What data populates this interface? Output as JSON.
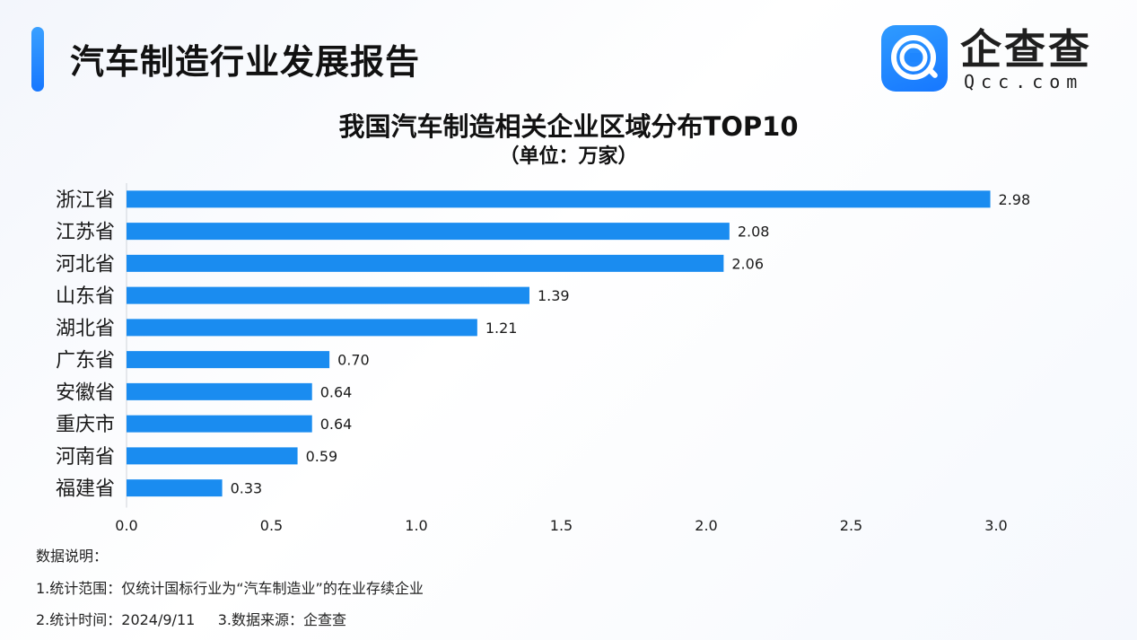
{
  "header": {
    "report_title": "汽车制造行业发展报告",
    "logo_text": "企查查",
    "logo_subtext": "Qcc.com",
    "accent_color": "#1677ff"
  },
  "chart_data": {
    "type": "bar",
    "orientation": "horizontal",
    "title": "我国汽车制造相关企业区域分布TOP10",
    "subtitle": "（单位：万家）",
    "categories": [
      "浙江省",
      "江苏省",
      "河北省",
      "山东省",
      "湖北省",
      "广东省",
      "安徽省",
      "重庆市",
      "河南省",
      "福建省"
    ],
    "values": [
      2.98,
      2.08,
      2.06,
      1.39,
      1.21,
      0.7,
      0.64,
      0.64,
      0.59,
      0.33
    ],
    "value_labels": [
      "2.98",
      "2.08",
      "2.06",
      "1.39",
      "1.21",
      "0.70",
      "0.64",
      "0.64",
      "0.59",
      "0.33"
    ],
    "xlim": [
      0,
      3.0
    ],
    "xticks": [
      "0.0",
      "0.5",
      "1.0",
      "1.5",
      "2.0",
      "2.5",
      "3.0"
    ],
    "bar_color": "#1a8cf0",
    "grid": false
  },
  "notes": {
    "heading": "数据说明：",
    "line1": "1.统计范围：仅统计国标行业为“汽车制造业”的在业存续企业",
    "line2": "2.统计时间：2024/9/11     3.数据来源：企查查"
  }
}
